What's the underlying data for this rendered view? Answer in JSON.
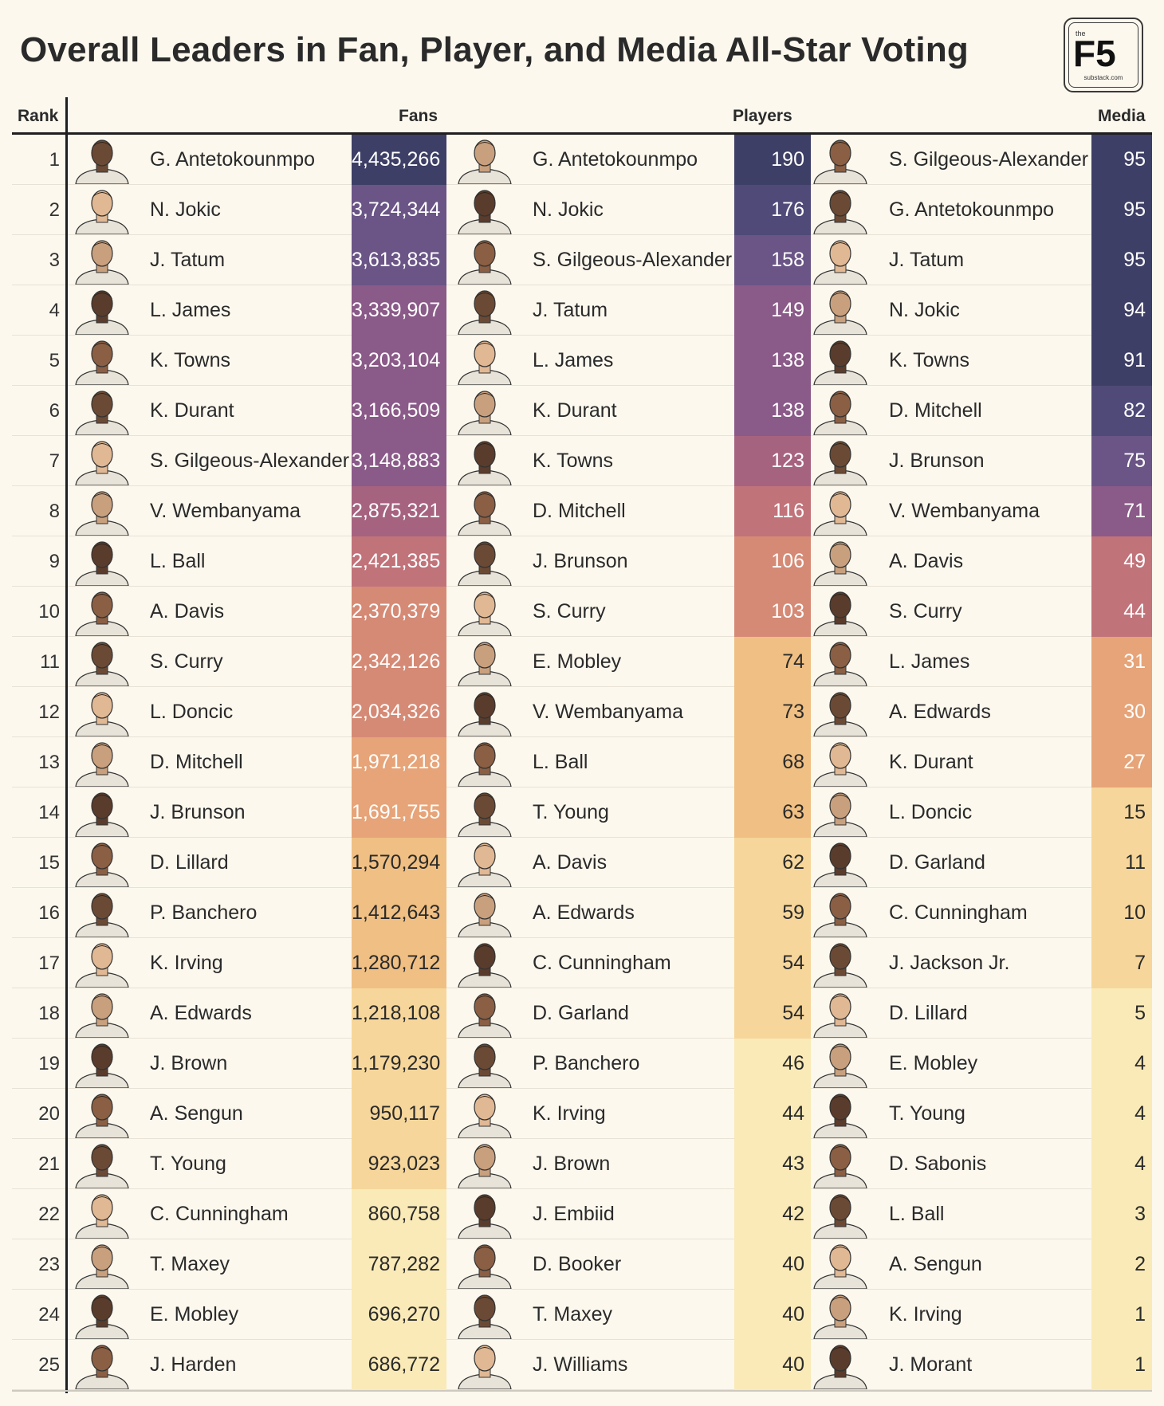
{
  "title": "Overall Leaders in Fan, Player, and Media All-Star Voting",
  "logo": {
    "small": "the",
    "main": "F5",
    "sub": "substack.com"
  },
  "headers": {
    "rank": "Rank",
    "fans": "Fans",
    "players": "Players",
    "media": "Media"
  },
  "colors": {
    "scale": [
      "#3e3f66",
      "#4f4a78",
      "#6a5586",
      "#8a5a88",
      "#a66380",
      "#c1737a",
      "#d58a75",
      "#e6a478",
      "#efbf83",
      "#f6d69a",
      "#faeab7"
    ],
    "dark_text": "#2a2a2a",
    "light_text": "#ffffff"
  },
  "chart_data": {
    "type": "table",
    "title": "Overall Leaders in Fan, Player, and Media All-Star Voting",
    "columns": [
      "Rank",
      "Fans",
      "Players",
      "Media"
    ],
    "rows": [
      {
        "rank": "1",
        "fans_player": "G. Antetokounmpo",
        "fans_votes": "4,435,266",
        "players_player": "G. Antetokounmpo",
        "players_votes": "190",
        "media_player": "S. Gilgeous-Alexander",
        "media_votes": "95"
      },
      {
        "rank": "2",
        "fans_player": "N. Jokic",
        "fans_votes": "3,724,344",
        "players_player": "N. Jokic",
        "players_votes": "176",
        "media_player": "G. Antetokounmpo",
        "media_votes": "95"
      },
      {
        "rank": "3",
        "fans_player": "J. Tatum",
        "fans_votes": "3,613,835",
        "players_player": "S. Gilgeous-Alexander",
        "players_votes": "158",
        "media_player": "J. Tatum",
        "media_votes": "95"
      },
      {
        "rank": "4",
        "fans_player": "L. James",
        "fans_votes": "3,339,907",
        "players_player": "J. Tatum",
        "players_votes": "149",
        "media_player": "N. Jokic",
        "media_votes": "94"
      },
      {
        "rank": "5",
        "fans_player": "K. Towns",
        "fans_votes": "3,203,104",
        "players_player": "L. James",
        "players_votes": "138",
        "media_player": "K. Towns",
        "media_votes": "91"
      },
      {
        "rank": "6",
        "fans_player": "K. Durant",
        "fans_votes": "3,166,509",
        "players_player": "K. Durant",
        "players_votes": "138",
        "media_player": "D. Mitchell",
        "media_votes": "82"
      },
      {
        "rank": "7",
        "fans_player": "S. Gilgeous-Alexander",
        "fans_votes": "3,148,883",
        "players_player": "K. Towns",
        "players_votes": "123",
        "media_player": "J. Brunson",
        "media_votes": "75"
      },
      {
        "rank": "8",
        "fans_player": "V. Wembanyama",
        "fans_votes": "2,875,321",
        "players_player": "D. Mitchell",
        "players_votes": "116",
        "media_player": "V. Wembanyama",
        "media_votes": "71"
      },
      {
        "rank": "9",
        "fans_player": "L. Ball",
        "fans_votes": "2,421,385",
        "players_player": "J. Brunson",
        "players_votes": "106",
        "media_player": "A. Davis",
        "media_votes": "49"
      },
      {
        "rank": "10",
        "fans_player": "A. Davis",
        "fans_votes": "2,370,379",
        "players_player": "S. Curry",
        "players_votes": "103",
        "media_player": "S. Curry",
        "media_votes": "44"
      },
      {
        "rank": "11",
        "fans_player": "S. Curry",
        "fans_votes": "2,342,126",
        "players_player": "E. Mobley",
        "players_votes": "74",
        "media_player": "L. James",
        "media_votes": "31"
      },
      {
        "rank": "12",
        "fans_player": "L. Doncic",
        "fans_votes": "2,034,326",
        "players_player": "V. Wembanyama",
        "players_votes": "73",
        "media_player": "A. Edwards",
        "media_votes": "30"
      },
      {
        "rank": "13",
        "fans_player": "D. Mitchell",
        "fans_votes": "1,971,218",
        "players_player": "L. Ball",
        "players_votes": "68",
        "media_player": "K. Durant",
        "media_votes": "27"
      },
      {
        "rank": "14",
        "fans_player": "J. Brunson",
        "fans_votes": "1,691,755",
        "players_player": "T. Young",
        "players_votes": "63",
        "media_player": "L. Doncic",
        "media_votes": "15"
      },
      {
        "rank": "15",
        "fans_player": "D. Lillard",
        "fans_votes": "1,570,294",
        "players_player": "A. Davis",
        "players_votes": "62",
        "media_player": "D. Garland",
        "media_votes": "11"
      },
      {
        "rank": "16",
        "fans_player": "P. Banchero",
        "fans_votes": "1,412,643",
        "players_player": "A. Edwards",
        "players_votes": "59",
        "media_player": "C. Cunningham",
        "media_votes": "10"
      },
      {
        "rank": "17",
        "fans_player": "K. Irving",
        "fans_votes": "1,280,712",
        "players_player": "C. Cunningham",
        "players_votes": "54",
        "media_player": "J. Jackson Jr.",
        "media_votes": "7"
      },
      {
        "rank": "18",
        "fans_player": "A. Edwards",
        "fans_votes": "1,218,108",
        "players_player": "D. Garland",
        "players_votes": "54",
        "media_player": "D. Lillard",
        "media_votes": "5"
      },
      {
        "rank": "19",
        "fans_player": "J. Brown",
        "fans_votes": "1,179,230",
        "players_player": "P. Banchero",
        "players_votes": "46",
        "media_player": "E. Mobley",
        "media_votes": "4"
      },
      {
        "rank": "20",
        "fans_player": "A. Sengun",
        "fans_votes": "950,117",
        "players_player": "K. Irving",
        "players_votes": "44",
        "media_player": "T. Young",
        "media_votes": "4"
      },
      {
        "rank": "21",
        "fans_player": "T. Young",
        "fans_votes": "923,023",
        "players_player": "J. Brown",
        "players_votes": "43",
        "media_player": "D. Sabonis",
        "media_votes": "4"
      },
      {
        "rank": "22",
        "fans_player": "C. Cunningham",
        "fans_votes": "860,758",
        "players_player": "J. Embiid",
        "players_votes": "42",
        "media_player": "L. Ball",
        "media_votes": "3"
      },
      {
        "rank": "23",
        "fans_player": "T. Maxey",
        "fans_votes": "787,282",
        "players_player": "D. Booker",
        "players_votes": "40",
        "media_player": "A. Sengun",
        "media_votes": "2"
      },
      {
        "rank": "24",
        "fans_player": "E. Mobley",
        "fans_votes": "696,270",
        "players_player": "T. Maxey",
        "players_votes": "40",
        "media_player": "K. Irving",
        "media_votes": "1"
      },
      {
        "rank": "25",
        "fans_player": "J. Harden",
        "fans_votes": "686,772",
        "players_player": "J. Williams",
        "players_votes": "40",
        "media_player": "J. Morant",
        "media_votes": "1"
      }
    ]
  }
}
